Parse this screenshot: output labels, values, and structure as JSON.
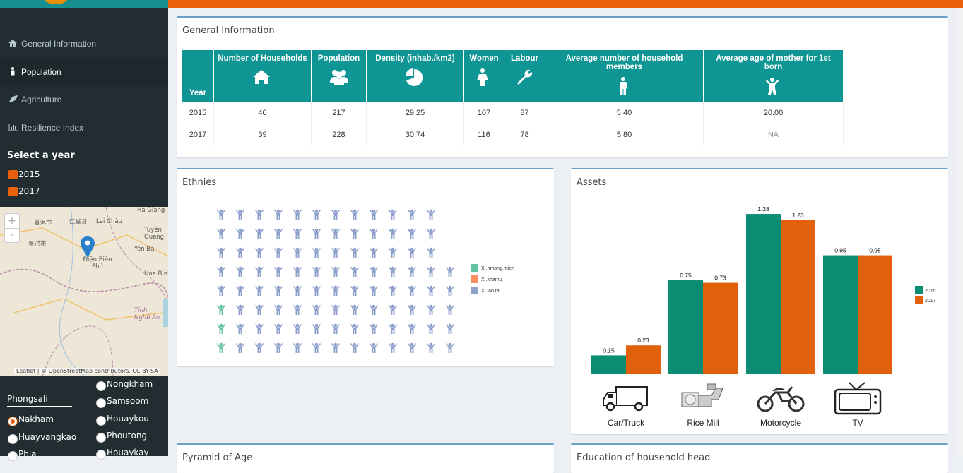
{
  "sidebar": {
    "menu": [
      "General Information",
      "Population",
      "Agriculture",
      "Resilience Index"
    ],
    "year_heading": "Select a year",
    "years": [
      "2015",
      "2017"
    ],
    "district": "Phongsali",
    "villages_left": [
      "Nakham",
      "Huayvangkao",
      "Phia"
    ],
    "villages_right": [
      "Nongkham",
      "Samsoom",
      "Houaykou",
      "Phoutong",
      "Houaykay"
    ]
  },
  "map": {
    "zoom_in": "+",
    "zoom_out": "-",
    "labels": [
      "Hà Giang",
      "普洱市",
      "江城县",
      "Lai Châu",
      "Tuyên Quang",
      "景洪市",
      "Yên Bái",
      "Điện Biên Phủ",
      "Hòa Bình",
      "Tỉnh Nghệ An"
    ],
    "attribution": "Leaflet | © OpenStreetMap contributors, CC-BY-SA"
  },
  "general_information": {
    "title": "General Information",
    "columns": [
      "Year",
      "Number of Households",
      "Population",
      "Density (inhab./km2)",
      "Women",
      "Labour",
      "Average number of household members",
      "Average age of mother for 1st born"
    ],
    "rows": [
      [
        "2015",
        "40",
        "217",
        "29.25",
        "107",
        "87",
        "5.40",
        "20.00"
      ],
      [
        "2017",
        "39",
        "228",
        "30.74",
        "116",
        "78",
        "5.80",
        "NA"
      ]
    ]
  },
  "ethnies": {
    "title": "Ethnies",
    "legend": [
      {
        "name": "X..hmong.mien",
        "color": "#66c2a5",
        "count": 3
      },
      {
        "name": "X..khamu",
        "color": "#fc8d62",
        "count": 0
      },
      {
        "name": "X..lao.tai",
        "color": "#8da0cb",
        "count": 98
      }
    ]
  },
  "assets": {
    "title": "Assets",
    "categories": [
      "Car/Truck",
      "Rice Mill",
      "Motorcycle",
      "TV"
    ],
    "series": [
      {
        "name": "2015",
        "color": "#0d8c74",
        "values": [
          0.15,
          0.75,
          1.28,
          0.95
        ]
      },
      {
        "name": "2017",
        "color": "#e0600b",
        "values": [
          0.23,
          0.73,
          1.23,
          0.95
        ]
      }
    ]
  },
  "lower_panels": [
    "Pyramid of Age",
    "Education of household head"
  ]
}
